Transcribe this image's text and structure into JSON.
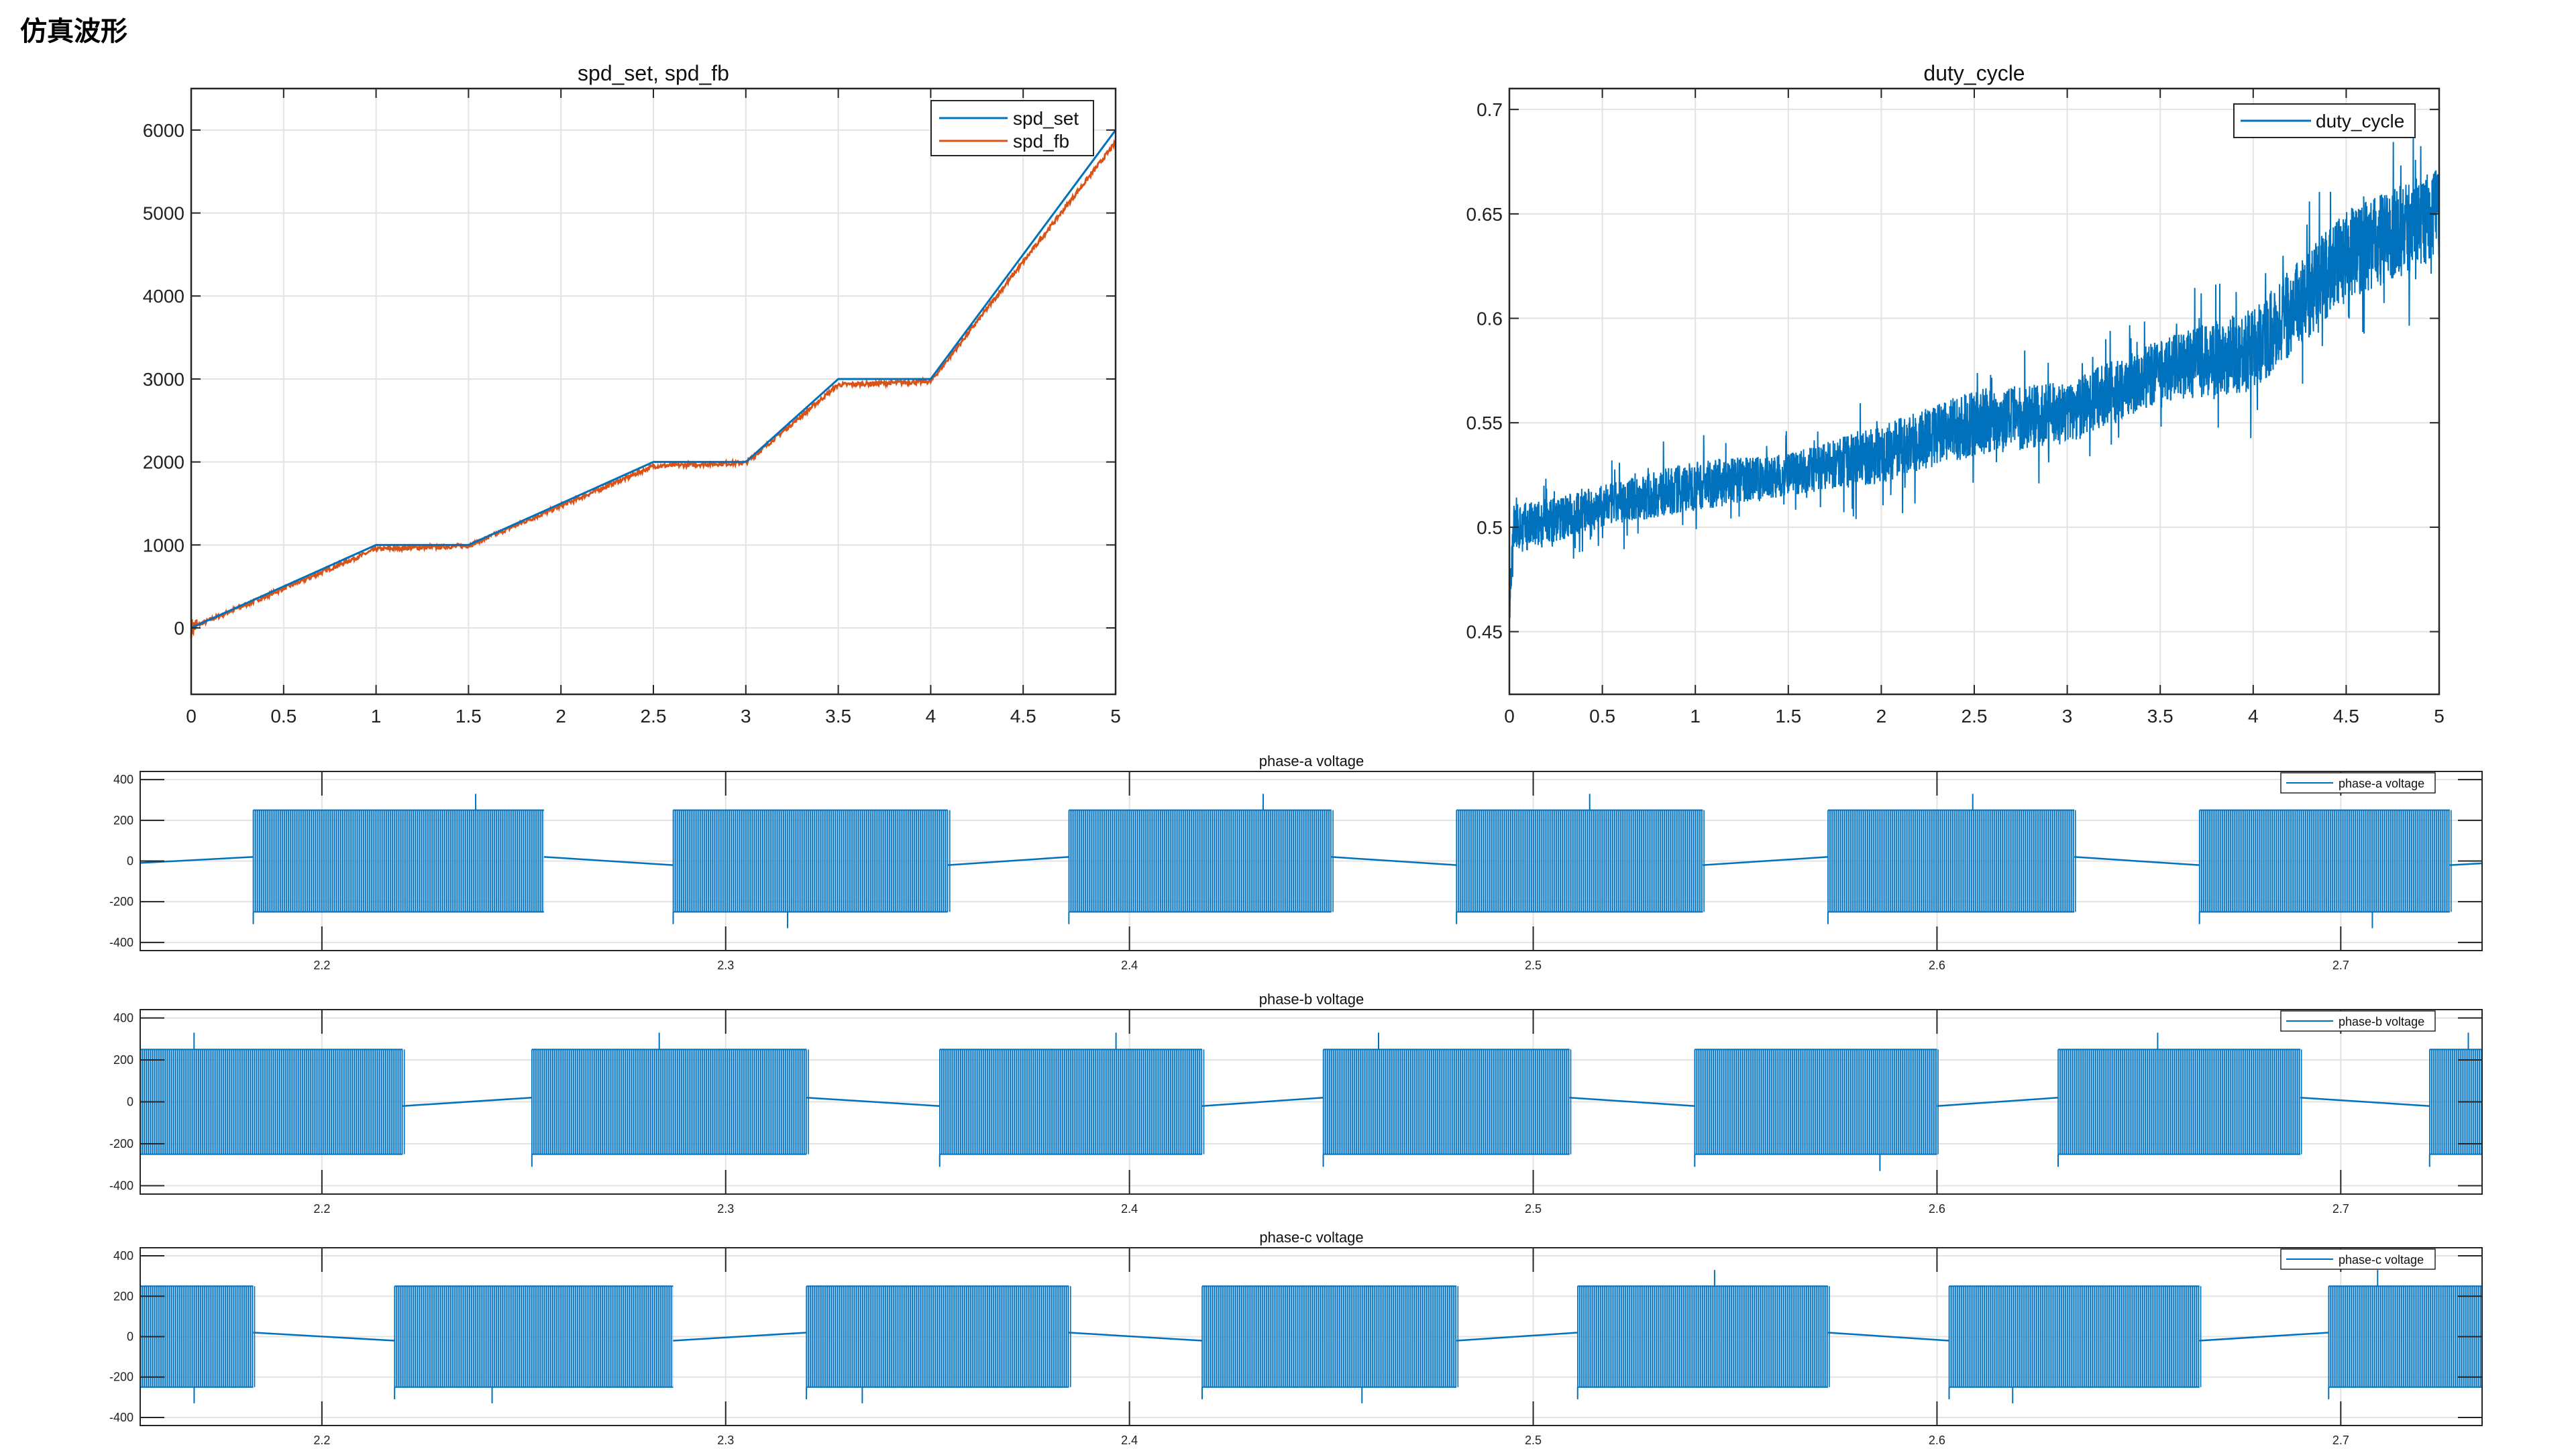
{
  "page": {
    "title": "仿真波形"
  },
  "colors": {
    "blue": "#0072BD",
    "orange": "#D95319",
    "grid": "#e3e3e3",
    "axis": "#262626"
  },
  "chart_data": [
    {
      "id": "spd",
      "type": "line",
      "title": "spd_set, spd_fb",
      "xlabel": "",
      "ylabel": "",
      "xlim": [
        0,
        5
      ],
      "ylim": [
        -800,
        6500
      ],
      "xticks": [
        0,
        0.5,
        1,
        1.5,
        2,
        2.5,
        3,
        3.5,
        4,
        4.5,
        5
      ],
      "xtick_labels": [
        "0",
        "0.5",
        "1",
        "1.5",
        "2",
        "2.5",
        "3",
        "3.5",
        "4",
        "4.5",
        "5"
      ],
      "yticks": [
        0,
        1000,
        2000,
        3000,
        4000,
        5000,
        6000
      ],
      "ytick_labels": [
        "0",
        "1000",
        "2000",
        "3000",
        "4000",
        "5000",
        "6000"
      ],
      "grid": true,
      "legend_position": "northeast",
      "series": [
        {
          "name": "spd_set",
          "color": "#0072BD",
          "x": [
            0,
            1,
            1.5,
            2.5,
            3,
            3.5,
            4,
            5
          ],
          "y": [
            0,
            1000,
            1000,
            2000,
            2000,
            3000,
            3000,
            6000
          ],
          "noise": 0
        },
        {
          "name": "spd_fb",
          "color": "#D95319",
          "x": [
            0,
            1,
            1.5,
            2.5,
            3,
            3.5,
            4,
            5
          ],
          "y": [
            0,
            950,
            990,
            1950,
            1990,
            2930,
            2970,
            5850
          ],
          "noise": 25
        }
      ]
    },
    {
      "id": "duty",
      "type": "line",
      "title": "duty_cycle",
      "xlabel": "",
      "ylabel": "",
      "xlim": [
        0,
        5
      ],
      "ylim": [
        0.42,
        0.71
      ],
      "xticks": [
        0,
        0.5,
        1,
        1.5,
        2,
        2.5,
        3,
        3.5,
        4,
        4.5,
        5
      ],
      "xtick_labels": [
        "0",
        "0.5",
        "1",
        "1.5",
        "2",
        "2.5",
        "3",
        "3.5",
        "4",
        "4.5",
        "5"
      ],
      "yticks": [
        0.45,
        0.5,
        0.55,
        0.6,
        0.65,
        0.7
      ],
      "ytick_labels": [
        "0.45",
        "0.5",
        "0.55",
        "0.6",
        "0.65",
        "0.7"
      ],
      "grid": true,
      "legend_position": "northeast",
      "series": [
        {
          "name": "duty_cycle",
          "color": "#0072BD",
          "x": [
            0,
            0.02,
            0.1,
            0.5,
            1,
            1.5,
            2,
            2.5,
            3,
            3.5,
            4,
            4.5,
            5
          ],
          "y": [
            0.46,
            0.5,
            0.5,
            0.51,
            0.52,
            0.525,
            0.535,
            0.55,
            0.555,
            0.575,
            0.585,
            0.63,
            0.65
          ],
          "noise": [
            0.008,
            0.012,
            0.012,
            0.01,
            0.012,
            0.01,
            0.014,
            0.016,
            0.015,
            0.015,
            0.02,
            0.022,
            0.022
          ]
        }
      ]
    },
    {
      "id": "phase_a",
      "type": "line",
      "title": "phase-a voltage",
      "xlim": [
        2.155,
        2.735
      ],
      "ylim": [
        -440,
        440
      ],
      "xticks": [
        2.2,
        2.3,
        2.4,
        2.5,
        2.6,
        2.7
      ],
      "xtick_labels": [
        "2.2",
        "2.3",
        "2.4",
        "2.5",
        "2.6",
        "2.7"
      ],
      "yticks": [
        -400,
        -200,
        0,
        200,
        400
      ],
      "ytick_labels": [
        "-400",
        "-200",
        "0",
        "200",
        "400"
      ],
      "grid": true,
      "legend_position": "northeast",
      "amplitude": 250,
      "series": [
        {
          "name": "phase-a voltage",
          "color": "#0072BD"
        }
      ],
      "pwm_bursts": [
        [
          2.183,
          2.255
        ],
        [
          2.287,
          2.355
        ],
        [
          2.385,
          2.45
        ],
        [
          2.481,
          2.542
        ],
        [
          2.573,
          2.634
        ],
        [
          2.665,
          2.727
        ]
      ],
      "gap_levels": [
        [
          0.157,
          0.01
        ],
        [
          -0.02,
          0.02
        ],
        [
          0.02,
          -0.02
        ],
        [
          -0.02,
          0.02
        ],
        [
          0.02,
          -0.02
        ],
        [
          -0.02,
          0.02
        ],
        [
          0.02,
          0.0
        ]
      ]
    },
    {
      "id": "phase_b",
      "type": "line",
      "title": "phase-b voltage",
      "xlim": [
        2.155,
        2.735
      ],
      "ylim": [
        -440,
        440
      ],
      "xticks": [
        2.2,
        2.3,
        2.4,
        2.5,
        2.6,
        2.7
      ],
      "xtick_labels": [
        "2.2",
        "2.3",
        "2.4",
        "2.5",
        "2.6",
        "2.7"
      ],
      "yticks": [
        -400,
        -200,
        0,
        200,
        400
      ],
      "ytick_labels": [
        "-400",
        "-200",
        "0",
        "200",
        "400"
      ],
      "grid": true,
      "legend_position": "northeast",
      "amplitude": 250,
      "series": [
        {
          "name": "phase-b voltage",
          "color": "#0072BD"
        }
      ],
      "pwm_bursts": [
        [
          2.155,
          2.22
        ],
        [
          2.252,
          2.32
        ],
        [
          2.353,
          2.418
        ],
        [
          2.448,
          2.509
        ],
        [
          2.54,
          2.6
        ],
        [
          2.63,
          2.69
        ],
        [
          2.722,
          2.735
        ]
      ],
      "gap_levels": []
    },
    {
      "id": "phase_c",
      "type": "line",
      "title": "phase-c voltage",
      "xlim": [
        2.155,
        2.735
      ],
      "ylim": [
        -440,
        440
      ],
      "xticks": [
        2.2,
        2.3,
        2.4,
        2.5,
        2.6,
        2.7
      ],
      "xtick_labels": [
        "2.2",
        "2.3",
        "2.4",
        "2.5",
        "2.6",
        "2.7"
      ],
      "yticks": [
        -400,
        -200,
        0,
        200,
        400
      ],
      "ytick_labels": [
        "-400",
        "-200",
        "0",
        "200",
        "400"
      ],
      "grid": true,
      "legend_position": "northeast",
      "amplitude": 250,
      "series": [
        {
          "name": "phase-c voltage",
          "color": "#0072BD"
        }
      ],
      "pwm_bursts": [
        [
          2.155,
          2.183
        ],
        [
          2.218,
          2.287
        ],
        [
          2.32,
          2.385
        ],
        [
          2.418,
          2.481
        ],
        [
          2.511,
          2.573
        ],
        [
          2.603,
          2.665
        ],
        [
          2.697,
          2.735
        ]
      ],
      "gap_levels": []
    }
  ]
}
